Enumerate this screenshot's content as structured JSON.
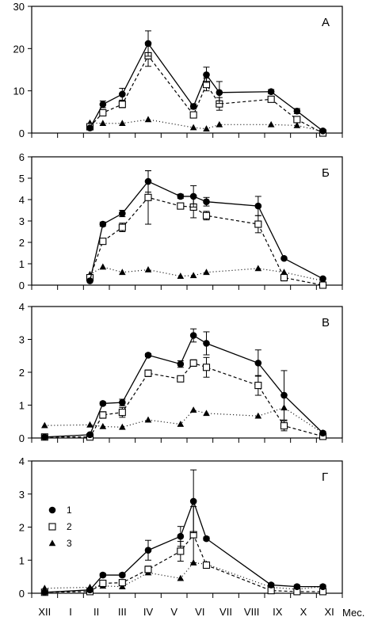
{
  "chart_data": [
    {
      "type": "line",
      "panel_label": "А",
      "ylim": [
        0,
        30
      ],
      "yticks": [
        0,
        10,
        20,
        30
      ],
      "x": [
        1.75,
        2.25,
        3,
        4,
        5.75,
        6.25,
        6.75,
        8.75,
        9.75,
        10.75
      ],
      "series": [
        {
          "name": "1",
          "marker": "filled-circle",
          "line": "solid",
          "values": [
            1.2,
            6.8,
            9.2,
            21.2,
            6.3,
            13.8,
            9.6,
            9.8,
            5.2,
            0.5
          ],
          "errors": [
            0.3,
            0.8,
            1.4,
            3.0,
            0.6,
            1.8,
            2.6,
            0.5,
            0.6,
            0.2
          ]
        },
        {
          "name": "2",
          "marker": "open-square",
          "line": "dashed",
          "values": [
            1.5,
            4.8,
            6.8,
            18.3,
            4.3,
            11.5,
            6.9,
            8.0,
            3.2,
            0.0
          ],
          "errors": [
            0.3,
            0.6,
            0.8,
            2.5,
            0.4,
            1.5,
            1.5,
            0.6,
            0.5,
            0.1
          ]
        },
        {
          "name": "3",
          "marker": "filled-triangle",
          "line": "dotted",
          "values": [
            2.4,
            2.3,
            2.3,
            3.2,
            1.3,
            1.0,
            2.0,
            2.0,
            1.8,
            0.4
          ],
          "errors": null
        }
      ]
    },
    {
      "type": "line",
      "panel_label": "Б",
      "ylim": [
        0,
        6
      ],
      "yticks": [
        0,
        1,
        2,
        3,
        4,
        5,
        6
      ],
      "x": [
        1.75,
        2.25,
        3,
        4,
        5.25,
        5.75,
        6.25,
        8.25,
        9.25,
        10.75
      ],
      "series": [
        {
          "name": "1",
          "marker": "filled-circle",
          "line": "solid",
          "values": [
            0.2,
            2.85,
            3.35,
            4.85,
            4.15,
            4.15,
            3.9,
            3.7,
            1.25,
            0.3
          ],
          "errors": [
            0.05,
            0.1,
            0.15,
            0.5,
            0.1,
            0.5,
            0.2,
            0.45,
            0.05,
            0.05
          ]
        },
        {
          "name": "2",
          "marker": "open-square",
          "line": "dashed",
          "values": [
            0.35,
            2.05,
            2.7,
            4.1,
            3.7,
            3.65,
            3.25,
            2.85,
            0.35,
            0.0
          ],
          "errors": [
            0.05,
            0.1,
            0.2,
            1.25,
            0.1,
            0.5,
            0.2,
            0.4,
            0.15,
            0.05
          ]
        },
        {
          "name": "3",
          "marker": "filled-triangle",
          "line": "dotted",
          "values": [
            0.5,
            0.85,
            0.6,
            0.72,
            0.42,
            0.45,
            0.6,
            0.78,
            0.6,
            0.2
          ],
          "errors": null
        }
      ]
    },
    {
      "type": "line",
      "panel_label": "В",
      "ylim": [
        0,
        4
      ],
      "yticks": [
        0,
        1,
        2,
        3,
        4
      ],
      "x": [
        0,
        1.75,
        2.25,
        3,
        4,
        5.25,
        5.75,
        6.25,
        8.25,
        9.25,
        10.75
      ],
      "series": [
        {
          "name": "1",
          "marker": "filled-circle",
          "line": "solid",
          "values": [
            0.03,
            0.1,
            1.05,
            1.08,
            2.52,
            2.25,
            3.12,
            2.88,
            2.28,
            1.3,
            0.15
          ],
          "errors": [
            0.03,
            0.03,
            0.05,
            0.1,
            0.05,
            0.1,
            0.2,
            0.35,
            0.4,
            0.75,
            0.05
          ]
        },
        {
          "name": "2",
          "marker": "open-square",
          "line": "dashed",
          "values": [
            0.03,
            0.03,
            0.7,
            0.78,
            1.97,
            1.8,
            2.28,
            2.15,
            1.6,
            0.37,
            0.05
          ],
          "errors": [
            0.03,
            0.03,
            0.1,
            0.15,
            0.1,
            0.05,
            0.1,
            0.3,
            0.3,
            0.15,
            0.05
          ]
        },
        {
          "name": "3",
          "marker": "filled-triangle",
          "line": "dotted",
          "values": [
            0.38,
            0.4,
            0.35,
            0.33,
            0.55,
            0.42,
            0.85,
            0.75,
            0.67,
            0.92,
            0.15
          ],
          "errors": null
        }
      ]
    },
    {
      "type": "line",
      "panel_label": "Г",
      "ylim": [
        0,
        4
      ],
      "yticks": [
        0,
        1,
        2,
        3,
        4
      ],
      "x": [
        0,
        1.75,
        2.25,
        3,
        4,
        5.25,
        5.75,
        6.25,
        8.75,
        9.75,
        10.75
      ],
      "series": [
        {
          "name": "1",
          "marker": "filled-circle",
          "line": "solid",
          "values": [
            0.03,
            0.1,
            0.55,
            0.55,
            1.3,
            1.72,
            2.78,
            1.65,
            0.25,
            0.2,
            0.2
          ],
          "errors": [
            0.03,
            0.03,
            0.05,
            0.05,
            0.3,
            0.3,
            0.95,
            0.05,
            0.05,
            0.05,
            0.05
          ]
        },
        {
          "name": "2",
          "marker": "open-square",
          "line": "dashed",
          "values": [
            0.03,
            0.05,
            0.3,
            0.32,
            0.72,
            1.27,
            1.77,
            0.85,
            0.08,
            0.05,
            0.05
          ],
          "errors": [
            0.03,
            0.03,
            0.05,
            0.05,
            0.1,
            0.3,
            0.85,
            0.05,
            0.03,
            0.03,
            0.03
          ]
        },
        {
          "name": "3",
          "marker": "filled-triangle",
          "line": "dotted",
          "values": [
            0.15,
            0.18,
            0.22,
            0.2,
            0.62,
            0.45,
            0.92,
            0.88,
            0.18,
            0.12,
            0.2
          ],
          "errors": null
        }
      ]
    }
  ],
  "x_axis": {
    "month_labels": [
      "XII",
      "I",
      "II",
      "III",
      "IV",
      "V",
      "VI",
      "VII",
      "VIII",
      "IX",
      "X",
      "XI"
    ],
    "label": "Мес.",
    "xlim": [
      -0.5,
      11.5
    ]
  },
  "legend": {
    "placement": "upper-left of panel Г",
    "entries": [
      {
        "label": "1",
        "marker": "filled-circle"
      },
      {
        "label": "2",
        "marker": "open-square"
      },
      {
        "label": "3",
        "marker": "filled-triangle"
      }
    ]
  }
}
